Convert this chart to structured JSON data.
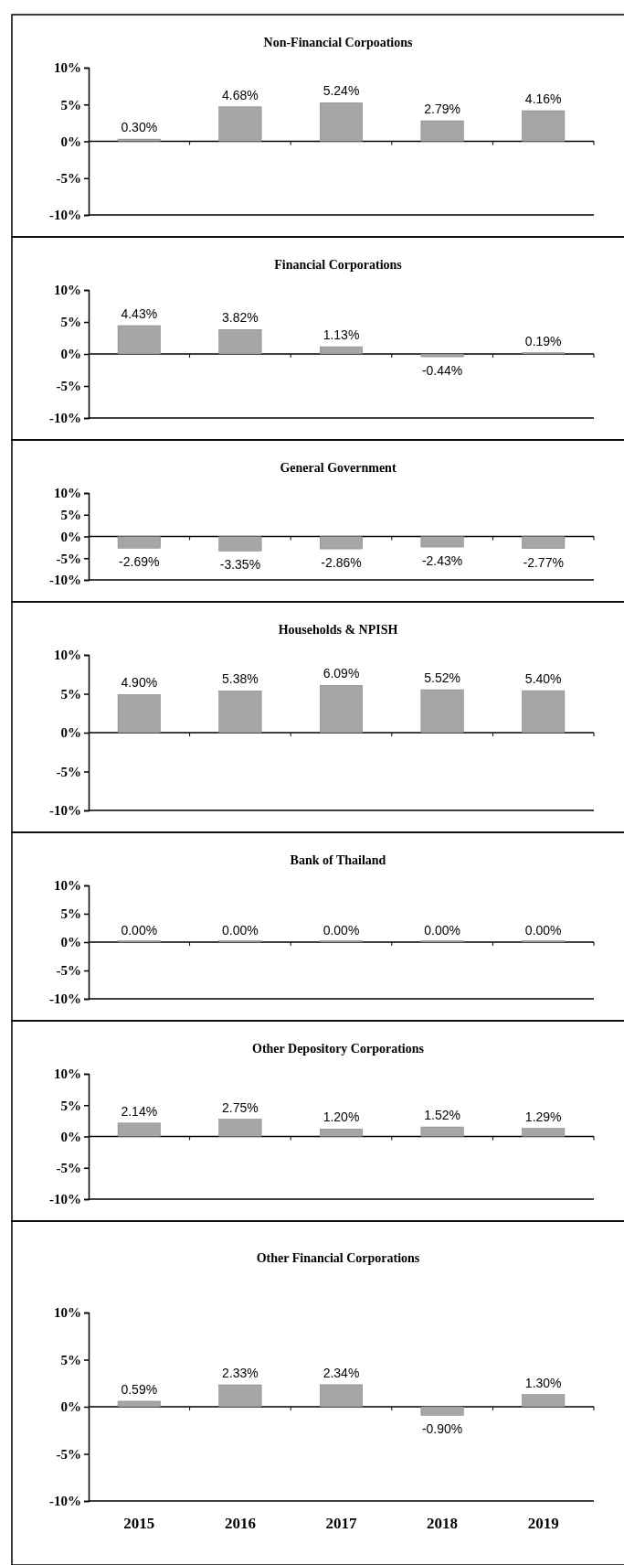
{
  "chart_data": [
    {
      "type": "bar",
      "title": "Non-Financial Corpoations",
      "categories": [
        "2015",
        "2016",
        "2017",
        "2018",
        "2019"
      ],
      "values": [
        0.3,
        4.68,
        5.24,
        2.79,
        4.16
      ],
      "value_labels": [
        "0.30%",
        "4.68%",
        "5.24%",
        "2.79%",
        "4.16%"
      ],
      "color": "#a6a6a6",
      "ylim": [
        -10,
        10
      ],
      "yticks": [
        {
          "value": -10,
          "label": "-10%"
        },
        {
          "value": -5,
          "label": "-5%"
        },
        {
          "value": 0,
          "label": "0%"
        },
        {
          "value": 5,
          "label": "5%"
        },
        {
          "value": 10,
          "label": "10%"
        }
      ],
      "tick_labels": "y"
    },
    {
      "type": "bar",
      "title": "Financial Corporations",
      "categories": [
        "2015",
        "2016",
        "2017",
        "2018",
        "2019"
      ],
      "values": [
        4.43,
        3.82,
        1.13,
        -0.44,
        0.19
      ],
      "value_labels": [
        "4.43%",
        "3.82%",
        "1.13%",
        "-0.44%",
        "0.19%"
      ],
      "color": "#a6a6a6",
      "ylim": [
        -10,
        10
      ],
      "yticks": [
        {
          "value": -10,
          "label": "-10%"
        },
        {
          "value": -5,
          "label": "-5%"
        },
        {
          "value": 0,
          "label": "0%"
        },
        {
          "value": 5,
          "label": "5%"
        },
        {
          "value": 10,
          "label": "10%"
        }
      ],
      "tick_labels": "y"
    },
    {
      "type": "bar",
      "title": "General  Government",
      "categories": [
        "2015",
        "2016",
        "2017",
        "2018",
        "2019"
      ],
      "values": [
        -2.69,
        -3.35,
        -2.86,
        -2.43,
        -2.77
      ],
      "value_labels": [
        "-2.69%",
        "-3.35%",
        "-2.86%",
        "-2.43%",
        "-2.77%"
      ],
      "color": "#a6a6a6",
      "ylim": [
        -10,
        10
      ],
      "yticks": [
        {
          "value": -10,
          "label": "-10%"
        },
        {
          "value": -5,
          "label": "-5%"
        },
        {
          "value": 0,
          "label": "0%"
        },
        {
          "value": 5,
          "label": "5%"
        },
        {
          "value": 10,
          "label": "10%"
        }
      ],
      "tick_labels": "y"
    },
    {
      "type": "bar",
      "title": "Households  &  NPISH",
      "categories": [
        "2015",
        "2016",
        "2017",
        "2018",
        "2019"
      ],
      "values": [
        4.9,
        5.38,
        6.09,
        5.52,
        5.4
      ],
      "value_labels": [
        "4.90%",
        "5.38%",
        "6.09%",
        "5.52%",
        "5.40%"
      ],
      "color": "#a6a6a6",
      "ylim": [
        -10,
        10
      ],
      "yticks": [
        {
          "value": -10,
          "label": "-10%"
        },
        {
          "value": -5,
          "label": "-5%"
        },
        {
          "value": 0,
          "label": "0%"
        },
        {
          "value": 5,
          "label": "5%"
        },
        {
          "value": 10,
          "label": "10%"
        }
      ],
      "tick_labels": "y"
    },
    {
      "type": "bar",
      "title": "Bank of Thailand",
      "categories": [
        "2015",
        "2016",
        "2017",
        "2018",
        "2019"
      ],
      "values": [
        0,
        0,
        0,
        0,
        0
      ],
      "value_labels": [
        "0.00%",
        "0.00%",
        "0.00%",
        "0.00%",
        "0.00%"
      ],
      "color": "#a6a6a6",
      "ylim": [
        -10,
        10
      ],
      "yticks": [
        {
          "value": -10,
          "label": "-10%"
        },
        {
          "value": -5,
          "label": "-5%"
        },
        {
          "value": 0,
          "label": "0%"
        },
        {
          "value": 5,
          "label": "5%"
        },
        {
          "value": 10,
          "label": "10%"
        }
      ],
      "tick_labels": "y"
    },
    {
      "type": "bar",
      "title": "Other Depository Corporations",
      "categories": [
        "2015",
        "2016",
        "2017",
        "2018",
        "2019"
      ],
      "values": [
        2.14,
        2.75,
        1.2,
        1.52,
        1.29
      ],
      "value_labels": [
        "2.14%",
        "2.75%",
        "1.20%",
        "1.52%",
        "1.29%"
      ],
      "color": "#a6a6a6",
      "ylim": [
        -10,
        10
      ],
      "yticks": [
        {
          "value": -10,
          "label": "-10%"
        },
        {
          "value": -5,
          "label": "-5%"
        },
        {
          "value": 0,
          "label": "0%"
        },
        {
          "value": 5,
          "label": "5%"
        },
        {
          "value": 10,
          "label": "10%"
        }
      ],
      "tick_labels": "y"
    },
    {
      "type": "bar",
      "title": "Other Financial Corporations",
      "categories": [
        "2015",
        "2016",
        "2017",
        "2018",
        "2019"
      ],
      "values": [
        0.59,
        2.33,
        2.34,
        -0.9,
        1.3
      ],
      "value_labels": [
        "0.59%",
        "2.33%",
        "2.34%",
        "-0.90%",
        "1.30%"
      ],
      "color": "#a6a6a6",
      "ylim": [
        -10,
        10
      ],
      "yticks": [
        {
          "value": -10,
          "label": "-10%"
        },
        {
          "value": -5,
          "label": "-5%"
        },
        {
          "value": 0,
          "label": "0%"
        },
        {
          "value": 5,
          "label": "5%"
        },
        {
          "value": 10,
          "label": "10%"
        }
      ]
    }
  ]
}
